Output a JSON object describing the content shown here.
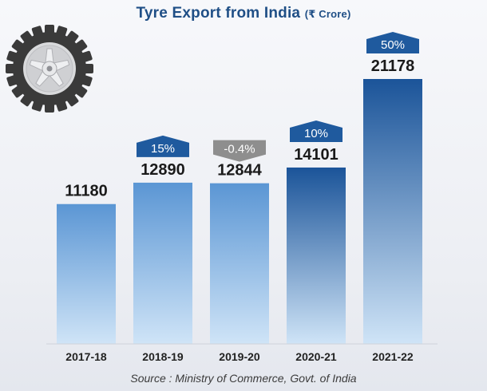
{
  "title": "Tyre Export from India",
  "title_unit": "(₹ Crore)",
  "source": "Source : Ministry of Commerce, Govt. of India",
  "icon": "tyre-icon",
  "colors": {
    "title": "#1f4f86",
    "bar_light_top": "#5b96d4",
    "bar_dark_top": "#1b5499",
    "bar_bottom": "#cfe4f7",
    "badge_up": "#1f5a9e",
    "badge_down": "#8e8e8e"
  },
  "chart_data": {
    "type": "bar",
    "categories": [
      "2017-18",
      "2018-19",
      "2019-20",
      "2020-21",
      "2021-22"
    ],
    "values": [
      11180,
      12890,
      12844,
      14101,
      21178
    ],
    "value_labels": [
      "11180",
      "12890",
      "12844",
      "14101",
      "21178"
    ],
    "growth_labels": [
      "",
      "15%",
      "-0.4%",
      "10%",
      "50%"
    ],
    "growth_direction": [
      "",
      "up",
      "down",
      "up",
      "up"
    ],
    "xlabel": "",
    "ylabel": "",
    "grid": false,
    "legend": "none"
  }
}
